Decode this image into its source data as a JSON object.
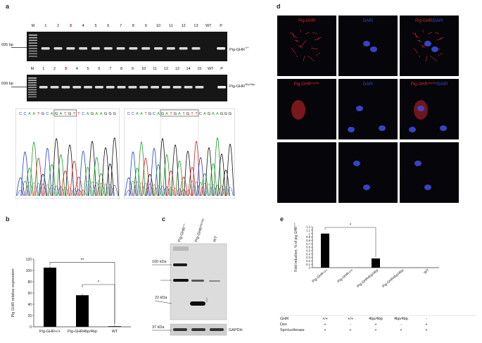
{
  "panel_a": {
    "letter": "a",
    "gel1": {
      "lanes": [
        "M",
        "1",
        "2",
        "3",
        "4",
        "5",
        "6",
        "7",
        "8",
        "9",
        "10",
        "11",
        "12",
        "13",
        "WT",
        "P"
      ],
      "highlight_lane": "3",
      "marker": "695 bp",
      "label": "Pig-GHR",
      "label_sup": "+/+"
    },
    "gel2": {
      "lanes": [
        "M",
        "1",
        "2",
        "3",
        "4",
        "5",
        "6",
        "7",
        "8",
        "9",
        "10",
        "11",
        "12",
        "13",
        "14",
        "15",
        "WT",
        "P"
      ],
      "highlight_lane": "3",
      "marker": "699 bp",
      "label": "Pig-GHR",
      "label_sup": "4bp/4bp"
    },
    "chrom1": {
      "seq": [
        "C",
        "C",
        "A",
        "A",
        "T",
        "G",
        "C",
        "A",
        "G",
        "A",
        "T",
        "G",
        "T",
        "T",
        "C",
        "A",
        "G",
        "A",
        "A",
        "G",
        "G",
        "G"
      ]
    },
    "chrom2": {
      "seq": [
        "C",
        "C",
        "A",
        "A",
        "T",
        "G",
        "C",
        "A",
        "G",
        "A",
        "T",
        "G",
        "A",
        "T",
        "G",
        "T",
        "T",
        "C",
        "A",
        "G",
        "A",
        "A",
        "G",
        "G",
        "G"
      ]
    }
  },
  "panel_b": {
    "letter": "b",
    "chart_data": {
      "type": "bar",
      "categories": [
        "Pig-GHR+/+",
        "Pig-GHR4bp/4bp",
        "WT"
      ],
      "values": [
        105,
        56,
        1
      ],
      "ylabel": "Pig GHR relative expression",
      "ylim": [
        0,
        120
      ],
      "yticks": [
        0,
        20,
        40,
        60,
        80,
        100,
        120
      ],
      "significance": [
        "**",
        "*"
      ],
      "grid": false
    }
  },
  "panel_c": {
    "letter": "c",
    "lanes": [
      "Pig-GHR",
      "Pig-GHR",
      "WT"
    ],
    "lane_sups": [
      "+/+",
      "4bp/4bp",
      ""
    ],
    "markers": [
      "100 kDa",
      "22 kDa",
      "37 kDa"
    ],
    "loading": "GAPDH"
  },
  "panel_d": {
    "letter": "d",
    "row1": {
      "c1": "Pig-GHR",
      "c2": "DAPI",
      "c3a": "Pig-GHR",
      "c3b": "/DAPI"
    },
    "row2": {
      "c1": "Pig-GHR",
      "c1sup": "4bp/4bp",
      "c2": "DAPI",
      "c3a": "Pig-GHR",
      "c3sup": "4bp/4bp",
      "c3b": "/DAPI"
    },
    "colors": {
      "red": "#d8282a",
      "blue": "#3a4bd8"
    }
  },
  "panel_e": {
    "letter": "e",
    "chart_data": {
      "type": "bar",
      "categories": [
        "Pig-GHR+/+",
        "Pig-GHR+/+",
        "Pig-GHR4bp/4bp",
        "Pig-GHR4bp/4bp",
        "WT"
      ],
      "values": [
        1.0,
        0,
        0.27,
        0,
        0
      ],
      "ylabel": "Fold induction, % of pig GHR",
      "ylabel_sup": "+/+",
      "ylim": [
        0,
        1.2
      ],
      "yticks": [
        "0",
        "0.1",
        "0.2",
        "0.3",
        "0.4",
        "0.5",
        "0.6",
        "0.7",
        "0.8",
        "0.9",
        "1",
        "1.1",
        "1.2"
      ],
      "significance": [
        "*"
      ],
      "grid": false
    },
    "table": {
      "rows": [
        {
          "name": "GHR",
          "vals": [
            "+/+",
            "+/+",
            "4bp/4bp",
            "4bp/4bp",
            "-"
          ]
        },
        {
          "name": "Dex",
          "vals": [
            "+",
            "-",
            "+",
            "-",
            "+"
          ]
        },
        {
          "name": "Spi+luciferase",
          "vals": [
            "+",
            "+",
            "+",
            "+",
            "+"
          ]
        }
      ]
    }
  }
}
